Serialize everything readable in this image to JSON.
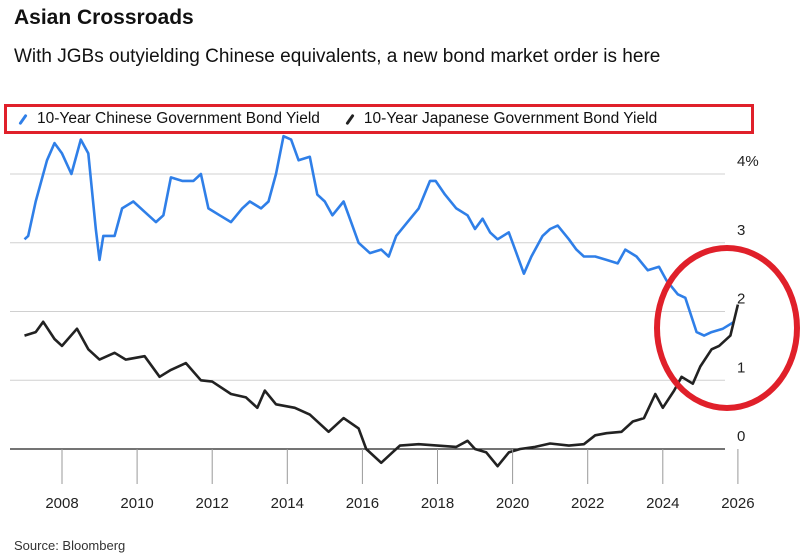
{
  "title": "Asian Crossroads",
  "subtitle": "With JGBs outyielding Chinese equivalents, a new bond market order is here",
  "source": "Source: Bloomberg",
  "colors": {
    "china": "#2f7fe8",
    "japan": "#222222",
    "annotation": "#e0202a"
  },
  "chart_data": {
    "type": "line",
    "title": "Asian Crossroads",
    "xlabel": "",
    "ylabel": "",
    "xlim": [
      2007,
      2026.3
    ],
    "ylim": [
      -0.3,
      4.6
    ],
    "grid": true,
    "legend_position": "top",
    "y_ticks": [
      {
        "value": 0,
        "label": "0"
      },
      {
        "value": 1,
        "label": "1"
      },
      {
        "value": 2,
        "label": "2"
      },
      {
        "value": 3,
        "label": "3"
      },
      {
        "value": 4,
        "label": "4%"
      }
    ],
    "x_ticks": [
      "2008",
      "2010",
      "2012",
      "2014",
      "2016",
      "2018",
      "2020",
      "2022",
      "2024",
      "2026"
    ],
    "series": [
      {
        "name": "10-Year Chinese Government Bond Yield",
        "color": "#2f7fe8",
        "x": [
          2007.0,
          2007.1,
          2007.3,
          2007.6,
          2007.8,
          2008.0,
          2008.25,
          2008.5,
          2008.7,
          2008.9,
          2009.0,
          2009.1,
          2009.4,
          2009.6,
          2009.9,
          2010.2,
          2010.5,
          2010.7,
          2010.9,
          2011.2,
          2011.5,
          2011.7,
          2011.9,
          2012.2,
          2012.5,
          2012.8,
          2013.0,
          2013.3,
          2013.5,
          2013.7,
          2013.9,
          2014.1,
          2014.3,
          2014.6,
          2014.8,
          2015.0,
          2015.2,
          2015.5,
          2015.7,
          2015.9,
          2016.2,
          2016.5,
          2016.7,
          2016.9,
          2017.2,
          2017.5,
          2017.8,
          2017.95,
          2018.2,
          2018.5,
          2018.8,
          2019.0,
          2019.2,
          2019.4,
          2019.6,
          2019.9,
          2020.1,
          2020.3,
          2020.5,
          2020.8,
          2021.0,
          2021.2,
          2021.5,
          2021.7,
          2021.9,
          2022.2,
          2022.5,
          2022.8,
          2023.0,
          2023.3,
          2023.6,
          2023.9,
          2024.1,
          2024.4,
          2024.6,
          2024.9,
          2025.1,
          2025.3,
          2025.6,
          2025.9
        ],
        "y": [
          3.05,
          3.1,
          3.6,
          4.2,
          4.45,
          4.3,
          4.0,
          4.5,
          4.3,
          3.2,
          2.75,
          3.1,
          3.1,
          3.5,
          3.6,
          3.45,
          3.3,
          3.4,
          3.95,
          3.9,
          3.9,
          4.0,
          3.5,
          3.4,
          3.3,
          3.5,
          3.6,
          3.5,
          3.6,
          4.0,
          4.55,
          4.5,
          4.2,
          4.25,
          3.7,
          3.6,
          3.4,
          3.6,
          3.3,
          3.0,
          2.85,
          2.9,
          2.8,
          3.1,
          3.3,
          3.5,
          3.9,
          3.9,
          3.7,
          3.5,
          3.4,
          3.2,
          3.35,
          3.15,
          3.05,
          3.15,
          2.85,
          2.55,
          2.8,
          3.1,
          3.2,
          3.25,
          3.05,
          2.9,
          2.8,
          2.8,
          2.75,
          2.7,
          2.9,
          2.8,
          2.6,
          2.65,
          2.45,
          2.25,
          2.2,
          1.7,
          1.65,
          1.7,
          1.75,
          1.85
        ]
      },
      {
        "name": "10-Year Japanese Government Bond Yield",
        "color": "#222222",
        "x": [
          2007.0,
          2007.3,
          2007.5,
          2007.8,
          2008.0,
          2008.4,
          2008.7,
          2009.0,
          2009.4,
          2009.7,
          2010.2,
          2010.6,
          2010.9,
          2011.3,
          2011.7,
          2012.0,
          2012.5,
          2012.9,
          2013.2,
          2013.4,
          2013.7,
          2014.2,
          2014.6,
          2014.9,
          2015.1,
          2015.5,
          2015.9,
          2016.1,
          2016.5,
          2016.8,
          2017.0,
          2017.5,
          2018.0,
          2018.5,
          2018.8,
          2019.0,
          2019.3,
          2019.6,
          2019.9,
          2020.2,
          2020.6,
          2021.0,
          2021.5,
          2021.9,
          2022.2,
          2022.5,
          2022.9,
          2023.2,
          2023.5,
          2023.8,
          2024.0,
          2024.3,
          2024.5,
          2024.8,
          2025.0,
          2025.3,
          2025.5,
          2025.8,
          2026.0
        ],
        "y": [
          1.65,
          1.7,
          1.85,
          1.6,
          1.5,
          1.75,
          1.45,
          1.3,
          1.4,
          1.3,
          1.35,
          1.05,
          1.15,
          1.25,
          1.0,
          0.98,
          0.8,
          0.75,
          0.6,
          0.85,
          0.65,
          0.6,
          0.5,
          0.35,
          0.25,
          0.45,
          0.3,
          0.0,
          -0.2,
          -0.05,
          0.05,
          0.07,
          0.05,
          0.03,
          0.12,
          0.0,
          -0.05,
          -0.25,
          -0.05,
          0.0,
          0.03,
          0.08,
          0.05,
          0.07,
          0.2,
          0.23,
          0.25,
          0.4,
          0.45,
          0.8,
          0.6,
          0.85,
          1.05,
          0.95,
          1.2,
          1.45,
          1.5,
          1.65,
          2.1
        ]
      }
    ]
  }
}
